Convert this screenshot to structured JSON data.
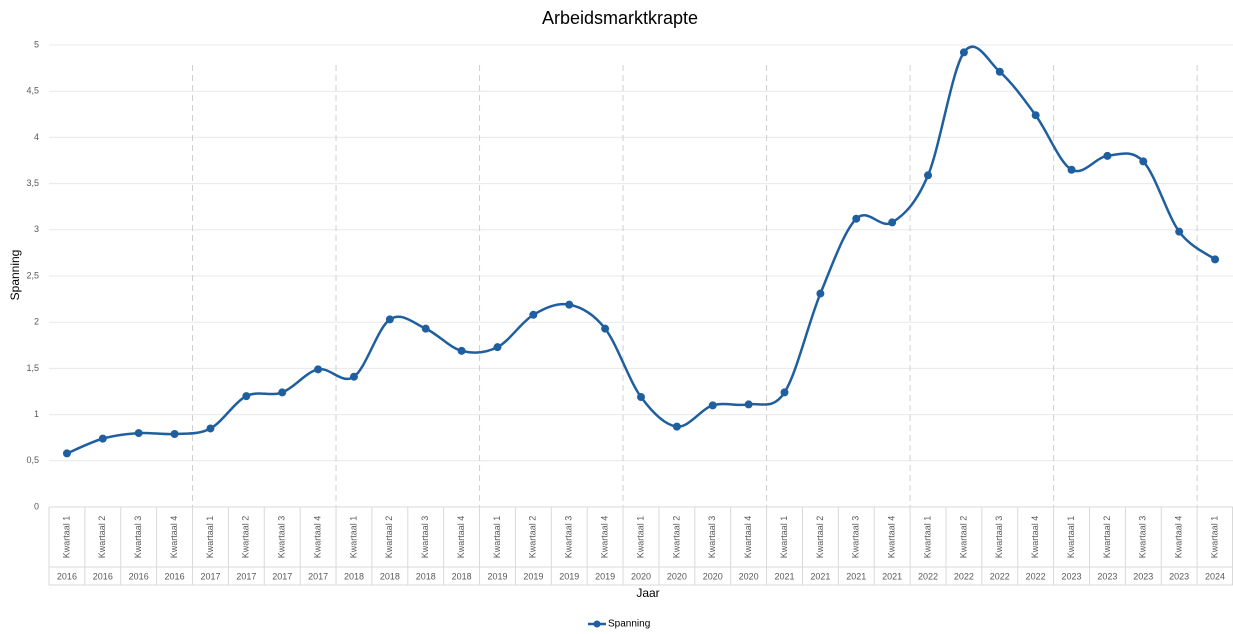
{
  "chart_data": {
    "type": "line",
    "title": "Arbeidsmarktkrapte",
    "x_label": "Jaar",
    "y_label": "Spanning",
    "categories": [
      "Kwartaal 1",
      "Kwartaal 2",
      "Kwartaal 3",
      "Kwartaal 4",
      "Kwartaal 1",
      "Kwartaal 2",
      "Kwartaal 3",
      "Kwartaal 4",
      "Kwartaal 1",
      "Kwartaal 2",
      "Kwartaal 3",
      "Kwartaal 4",
      "Kwartaal 1",
      "Kwartaal 2",
      "Kwartaal 3",
      "Kwartaal 4",
      "Kwartaal 1",
      "Kwartaal 2",
      "Kwartaal 3",
      "Kwartaal 4",
      "Kwartaal 1",
      "Kwartaal 2",
      "Kwartaal 3",
      "Kwartaal 4",
      "Kwartaal 1",
      "Kwartaal 2",
      "Kwartaal 3",
      "Kwartaal 4",
      "Kwartaal 1",
      "Kwartaal 2",
      "Kwartaal 3",
      "Kwartaal 4",
      "Kwartaal 1"
    ],
    "category_groups": [
      "2016",
      "2016",
      "2016",
      "2016",
      "2017",
      "2017",
      "2017",
      "2017",
      "2018",
      "2018",
      "2018",
      "2018",
      "2019",
      "2019",
      "2019",
      "2019",
      "2020",
      "2020",
      "2020",
      "2020",
      "2021",
      "2021",
      "2021",
      "2021",
      "2022",
      "2022",
      "2022",
      "2022",
      "2023",
      "2023",
      "2023",
      "2023",
      "2024"
    ],
    "series": [
      {
        "name": "Spanning",
        "color": "#1f5fa0",
        "values": [
          0.58,
          0.74,
          0.8,
          0.79,
          0.85,
          1.2,
          1.24,
          1.49,
          1.41,
          2.03,
          1.93,
          1.69,
          1.73,
          2.08,
          2.19,
          1.93,
          1.19,
          0.87,
          1.1,
          1.11,
          1.24,
          2.31,
          3.12,
          3.08,
          3.59,
          4.92,
          4.71,
          4.24,
          3.65,
          3.8,
          3.74,
          2.98,
          2.68
        ]
      }
    ],
    "ylim": [
      0,
      5
    ],
    "yticks": [
      0,
      {
        "value": 0.5,
        "label": "0,5"
      },
      1,
      {
        "value": 1.5,
        "label": "1,5"
      },
      2,
      {
        "value": 2.5,
        "label": "2,5"
      },
      3,
      {
        "value": 3.5,
        "label": "3,5"
      },
      4,
      {
        "value": 4.5,
        "label": "4,5"
      },
      5
    ],
    "grid": true,
    "smooth": true,
    "legend": "bottom"
  }
}
